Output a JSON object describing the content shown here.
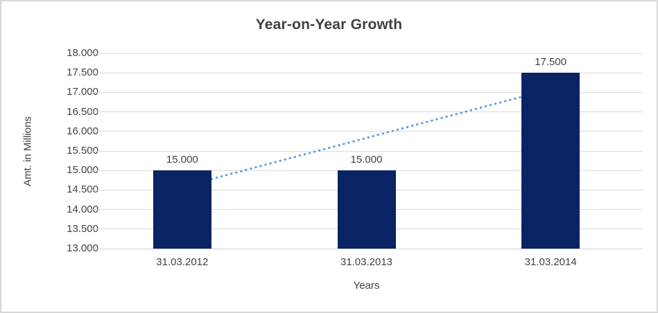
{
  "chart_data": {
    "type": "bar",
    "title": "Year-on-Year Growth",
    "xlabel": "Years",
    "ylabel": "Amt. in Millions",
    "categories": [
      "31.03.2012",
      "31.03.2013",
      "31.03.2014"
    ],
    "values": [
      15000,
      15000,
      17500
    ],
    "data_labels": [
      "15.000",
      "15.000",
      "17.500"
    ],
    "ylim": [
      13000,
      18000
    ],
    "ytick_step": 500,
    "ytick_labels": [
      "13.000",
      "13.500",
      "14.000",
      "14.500",
      "15.000",
      "15.500",
      "16.000",
      "16.500",
      "17.000",
      "17.500",
      "18.000"
    ],
    "grid": true,
    "legend": "none",
    "bar_color": "#0a2463",
    "gridline_color": "#d9d9d9",
    "axis_line_color": "#cfcfcf",
    "text_color": "#404040",
    "trendline": {
      "type": "linear",
      "style": "dotted",
      "color": "#5b9bd5",
      "start_value": 14583,
      "end_value": 17083
    }
  }
}
